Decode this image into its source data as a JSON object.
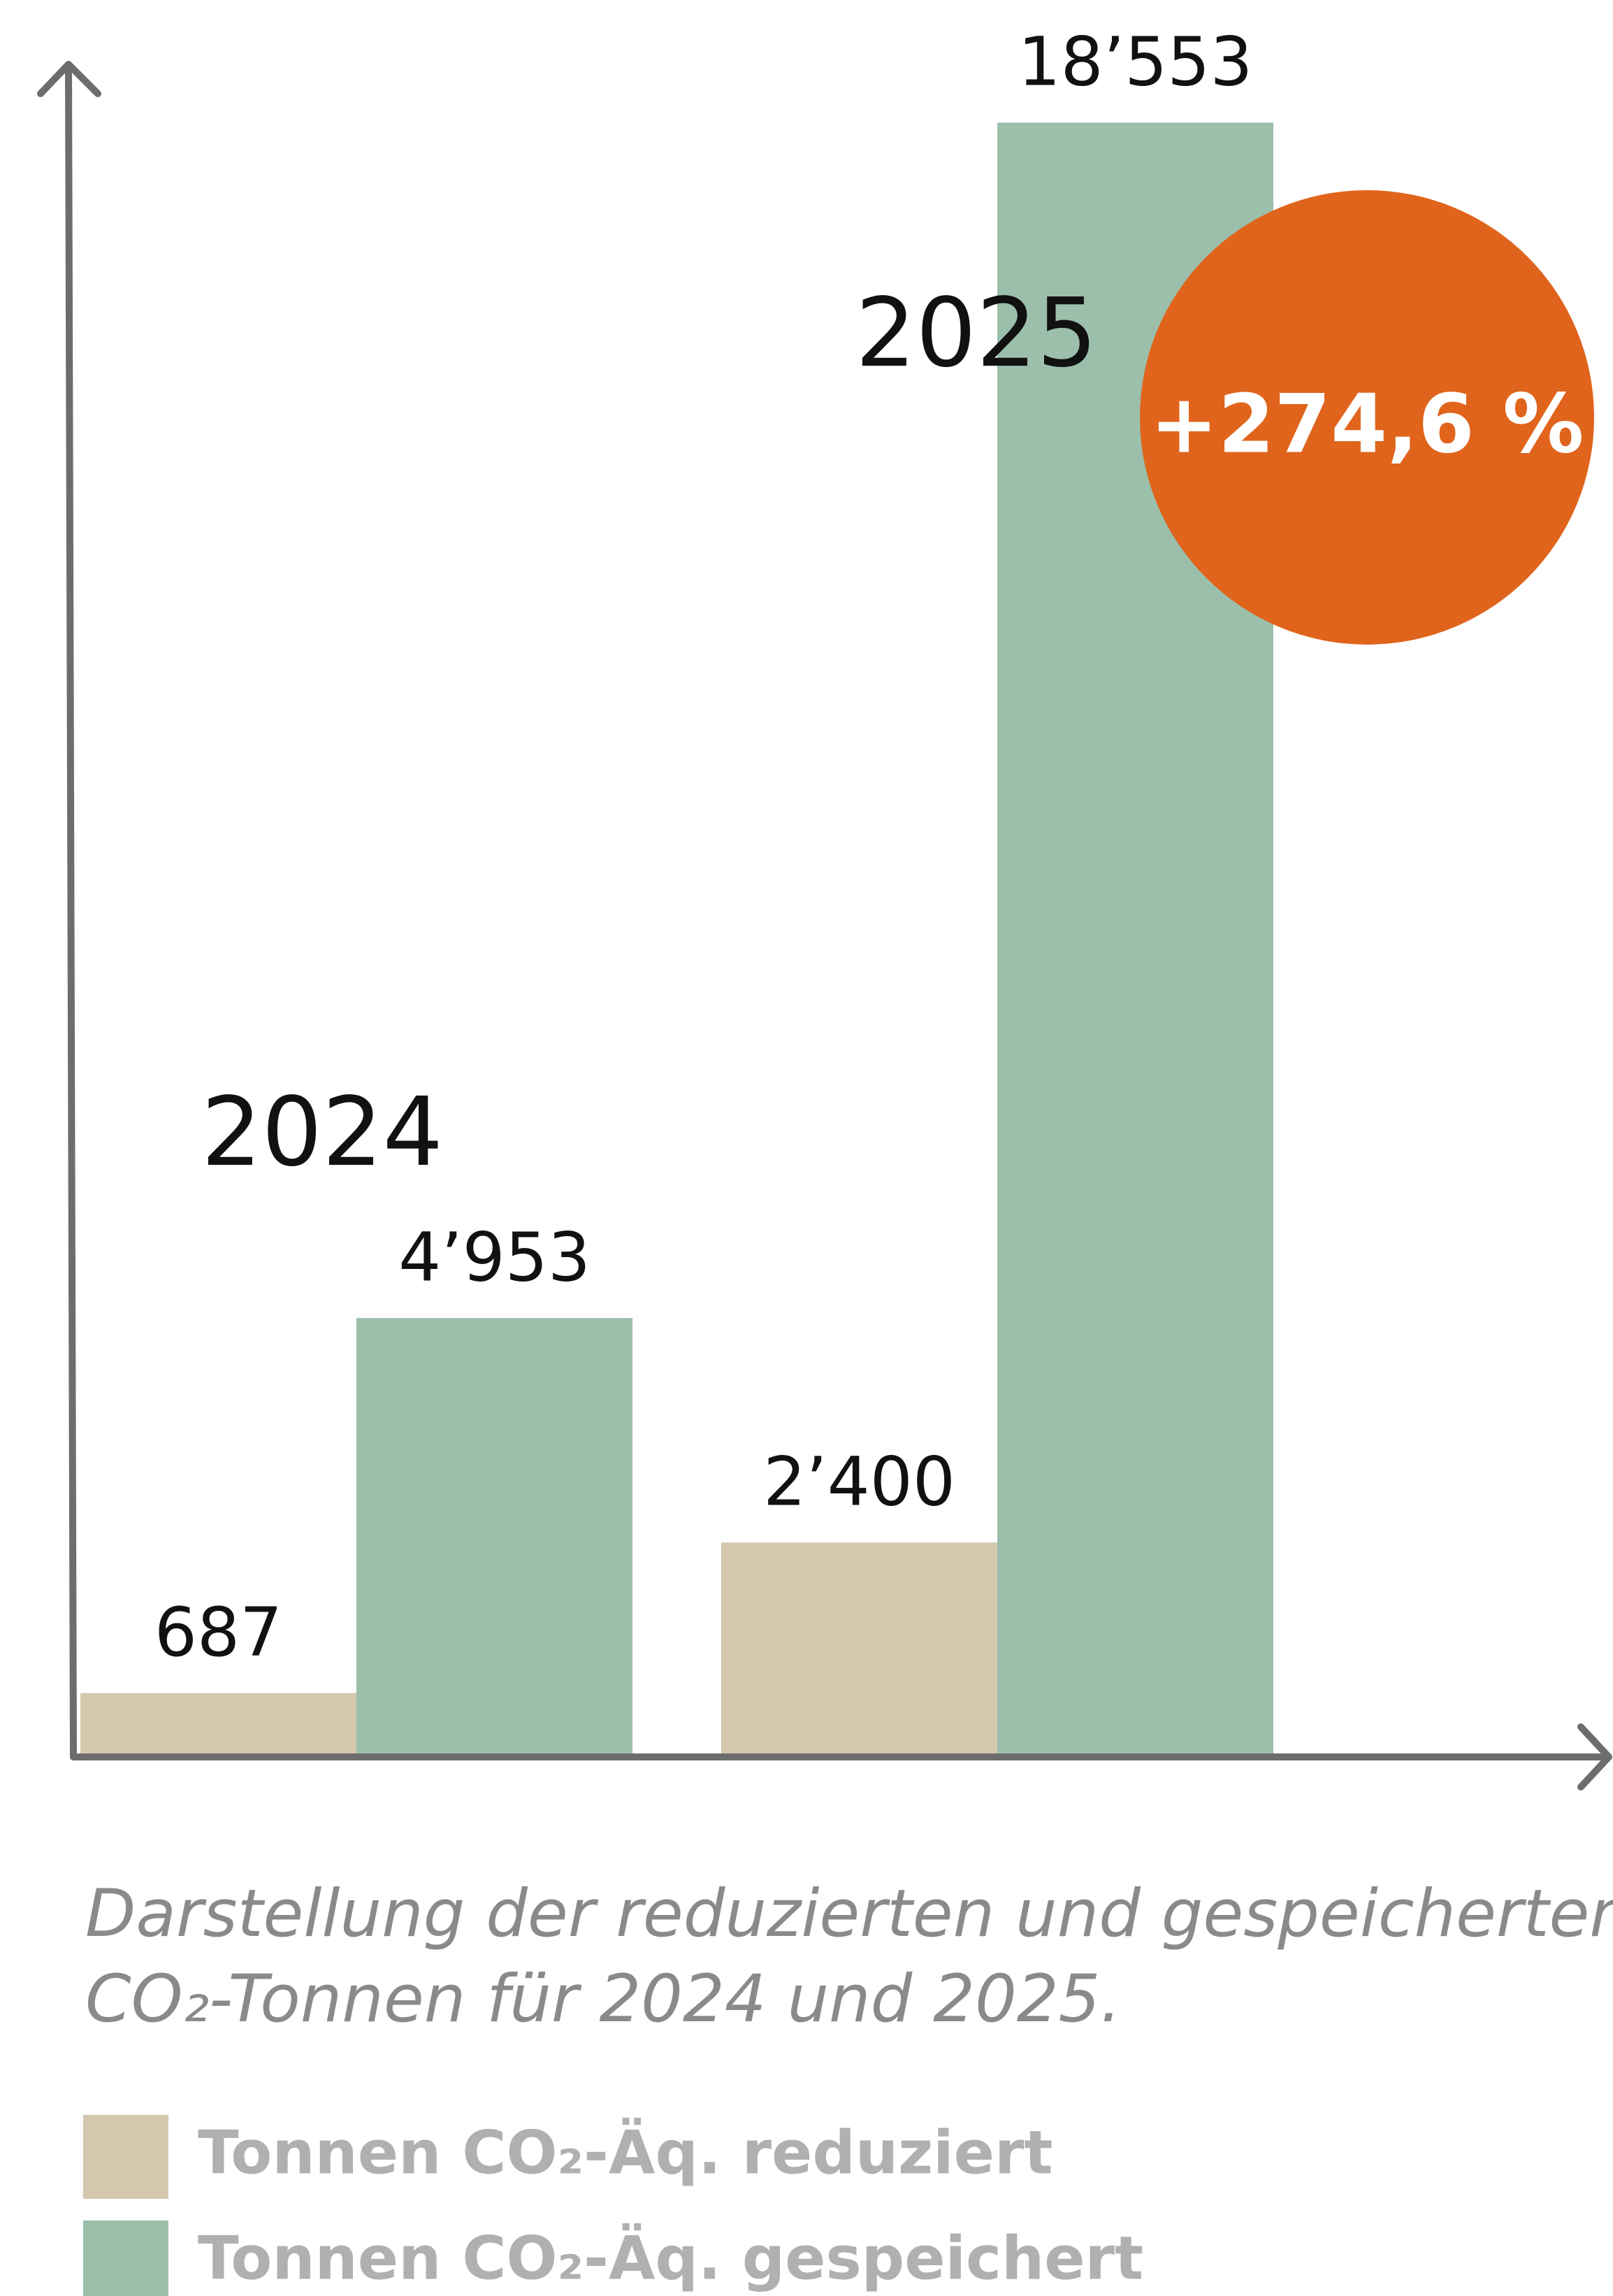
{
  "chart_data": {
    "type": "bar",
    "categories": [
      "2024",
      "2025"
    ],
    "series": [
      {
        "name": "Tonnen CO₂-Äq. reduziert",
        "color": "#d3c7ad",
        "values": [
          687,
          2400
        ],
        "value_labels": [
          "687",
          "2’400"
        ]
      },
      {
        "name": "Tonnen CO₂-Äq. gespeichert",
        "color": "#9bbfab",
        "values": [
          4953,
          18553
        ],
        "value_labels": [
          "4’953",
          "18’553"
        ]
      }
    ],
    "ylim": [
      0,
      19200
    ],
    "annotation": {
      "text": "+274,6 %",
      "color": "#e0641c"
    },
    "caption": [
      "Darstellung der reduzierten und gespeicherten",
      "CO₂-Tonnen für 2024 und 2025."
    ]
  }
}
